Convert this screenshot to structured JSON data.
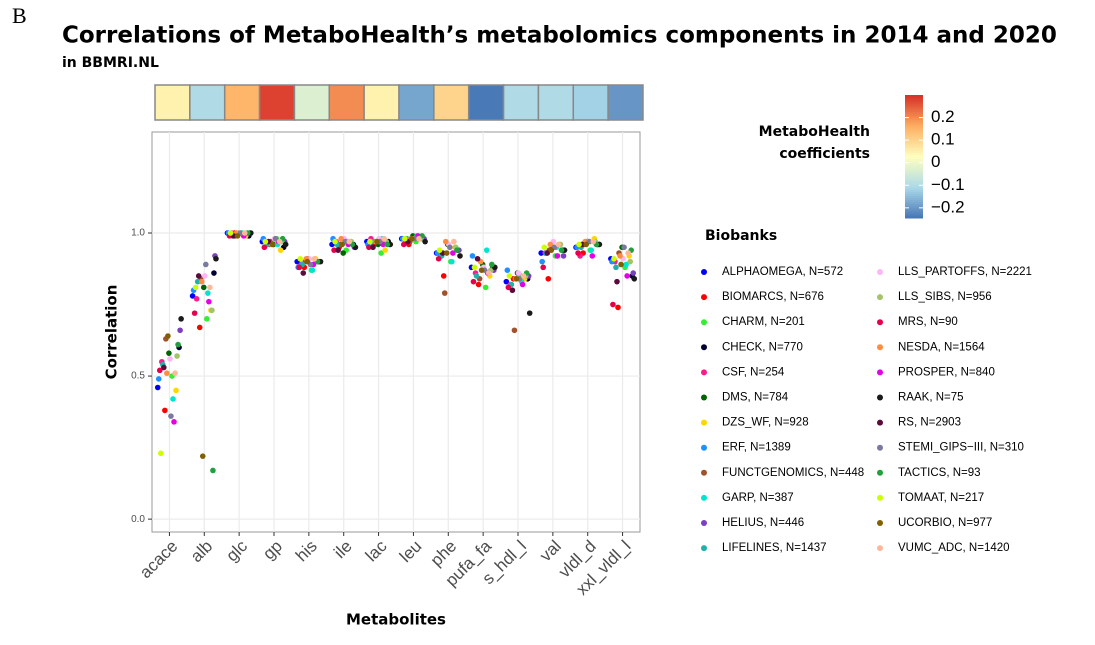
{
  "panel_label": "B",
  "chart_data": {
    "type": "strip",
    "title": "Correlations of MetaboHealth’s metabolomics components in 2014 and 2020",
    "subtitle": "in BBMRI.NL",
    "x_label": "Metabolites",
    "y_label": "Correlation",
    "categories": [
      "acace",
      "alb",
      "glc",
      "gp",
      "his",
      "ile",
      "lac",
      "leu",
      "phe",
      "pufa_fa",
      "s_hdl_l",
      "val",
      "vldl_d",
      "xxl_vldl_l"
    ],
    "ylim": [
      -0.045,
      1.353
    ],
    "yticks": [
      {
        "value": 0,
        "label": "0.0"
      },
      {
        "value": 0.5,
        "label": "0.5"
      },
      {
        "value": 1,
        "label": "1.0"
      }
    ],
    "grid": true,
    "coefficients": [
      0.05,
      -0.1,
      0.15,
      0.28,
      -0.03,
      0.2,
      0.05,
      -0.18,
      0.1,
      -0.24,
      -0.1,
      -0.1,
      -0.12,
      -0.2
    ],
    "colorbar_title": [
      "MetaboHealth",
      "coefficients"
    ],
    "colorbar_lim": [
      -0.245,
      0.3
    ],
    "colorbar_ticks": [
      {
        "value": 0.2,
        "label": "0.2"
      },
      {
        "value": 0.1,
        "label": "0.1"
      },
      0,
      {
        "value": -0.1,
        "label": "−0.1"
      },
      {
        "value": -0.2,
        "label": "−0.2"
      }
    ],
    "colorscale": [
      "#4575b4",
      "#abd9e9",
      "#ffffbf",
      "#fdae61",
      "#d73027"
    ],
    "legend_title": "Biobanks",
    "series": [
      {
        "name": "ALPHAOMEGA, N=572",
        "color": "#0000ff",
        "values": [
          0.46,
          0.78,
          1.0,
          0.97,
          0.9,
          0.96,
          0.97,
          0.98,
          0.93,
          0.88,
          0.83,
          0.93,
          0.95,
          0.91
        ]
      },
      {
        "name": "BIOMARCS, N=676",
        "color": "#ff0000",
        "values": [
          0.38,
          0.67,
          1.0,
          0.96,
          0.88,
          0.95,
          0.96,
          0.96,
          0.85,
          0.82,
          0.84,
          0.84,
          0.93,
          0.74
        ]
      },
      {
        "name": "CHARM, N=201",
        "color": "#33ee33",
        "values": [
          0.5,
          0.7,
          1.0,
          0.98,
          0.87,
          0.94,
          0.93,
          0.97,
          0.9,
          0.81,
          0.85,
          0.92,
          0.94,
          0.88
        ]
      },
      {
        "name": "CHECK, N=770",
        "color": "#000033",
        "values": [
          0.6,
          0.86,
          0.99,
          0.95,
          0.9,
          0.96,
          0.97,
          0.98,
          0.94,
          0.88,
          0.84,
          0.94,
          0.96,
          0.85
        ]
      },
      {
        "name": "CSF, N=254",
        "color": "#ff1a8c",
        "values": [
          0.55,
          0.77,
          1.0,
          0.97,
          0.89,
          0.97,
          0.98,
          0.97,
          0.92,
          0.86,
          0.82,
          0.93,
          0.92,
          0.9
        ]
      },
      {
        "name": "DMS, N=784",
        "color": "#006400",
        "values": [
          0.58,
          0.81,
          1.0,
          0.96,
          0.91,
          0.93,
          0.96,
          0.99,
          0.96,
          0.89,
          0.86,
          0.95,
          0.97,
          0.95
        ]
      },
      {
        "name": "DZS_WF, N=928",
        "color": "#ffd700",
        "values": [
          0.45,
          0.73,
          0.99,
          0.94,
          0.91,
          0.97,
          0.94,
          0.98,
          0.95,
          0.85,
          0.84,
          0.96,
          0.98,
          0.92
        ]
      },
      {
        "name": "ERF, N=1389",
        "color": "#1e90ff",
        "values": [
          0.49,
          0.8,
          1.0,
          0.98,
          0.88,
          0.98,
          0.96,
          0.98,
          0.93,
          0.92,
          0.87,
          0.9,
          0.95,
          0.9
        ]
      },
      {
        "name": "FUNCTGENOMICS, N=448",
        "color": "#a0522d",
        "values": [
          0.63,
          0.84,
          0.99,
          0.97,
          0.9,
          0.96,
          0.97,
          0.97,
          0.79,
          0.84,
          0.66,
          0.94,
          0.96,
          0.93
        ]
      },
      {
        "name": "GARP, N=387",
        "color": "#00e5cc",
        "values": [
          0.42,
          0.79,
          1.0,
          0.96,
          0.87,
          0.97,
          0.98,
          0.99,
          0.9,
          0.94,
          0.83,
          0.95,
          0.94,
          0.89
        ]
      },
      {
        "name": "HELIUS, N=446",
        "color": "#7b3fbf",
        "values": [
          0.66,
          0.92,
          1.0,
          0.97,
          0.9,
          0.95,
          0.96,
          0.98,
          0.94,
          0.87,
          0.85,
          0.92,
          0.96,
          0.86
        ]
      },
      {
        "name": "LIFELINES, N=1437",
        "color": "#20b2aa",
        "values": [
          0.54,
          0.83,
          0.99,
          0.96,
          0.89,
          0.96,
          0.97,
          0.98,
          0.92,
          0.85,
          0.82,
          0.93,
          0.95,
          0.88
        ]
      },
      {
        "name": "LLS_PARTOFFS, N=2221",
        "color": "#ffb6f5",
        "values": [
          0.56,
          0.85,
          1.0,
          0.98,
          0.91,
          0.98,
          0.98,
          0.98,
          0.96,
          0.88,
          0.86,
          0.97,
          0.97,
          0.91
        ]
      },
      {
        "name": "LLS_SIBS, N=956",
        "color": "#a4c46a",
        "values": [
          0.57,
          0.73,
          1.0,
          0.97,
          0.9,
          0.97,
          0.97,
          0.98,
          0.95,
          0.87,
          0.85,
          0.96,
          0.97,
          0.9
        ]
      },
      {
        "name": "MRS, N=90",
        "color": "#e6004c",
        "values": [
          0.52,
          0.72,
          0.99,
          0.95,
          0.88,
          0.94,
          0.95,
          0.96,
          0.91,
          0.83,
          0.81,
          0.88,
          0.93,
          0.75
        ]
      },
      {
        "name": "NESDA, N=1564",
        "color": "#ff8c40",
        "values": [
          0.51,
          0.83,
          1.0,
          0.96,
          0.91,
          0.98,
          0.97,
          0.98,
          0.97,
          0.9,
          0.84,
          0.96,
          0.97,
          0.92
        ]
      },
      {
        "name": "PROSPER, N=840",
        "color": "#e600e6",
        "values": [
          0.34,
          0.76,
          0.99,
          0.97,
          0.89,
          0.96,
          0.96,
          0.99,
          0.93,
          0.86,
          0.82,
          0.92,
          0.92,
          0.85
        ]
      },
      {
        "name": "RAAK, N=75",
        "color": "#1a1a1a",
        "values": [
          0.7,
          0.91,
          1.0,
          0.96,
          0.9,
          0.95,
          0.96,
          0.97,
          0.92,
          0.88,
          0.72,
          0.94,
          0.96,
          0.84
        ]
      },
      {
        "name": "RS, N=2903",
        "color": "#5c0a3c",
        "values": [
          0.53,
          0.85,
          0.99,
          0.97,
          0.86,
          0.94,
          0.95,
          0.97,
          0.93,
          0.91,
          0.8,
          0.93,
          0.96,
          0.83
        ]
      },
      {
        "name": "STEMI_GIPS−III, N=310",
        "color": "#7a7aa0",
        "values": [
          0.36,
          0.89,
          1.0,
          0.98,
          0.89,
          0.97,
          0.97,
          0.98,
          0.95,
          0.87,
          0.84,
          0.95,
          0.97,
          0.95
        ]
      },
      {
        "name": "TACTICS, N=93",
        "color": "#22a03c",
        "values": [
          0.61,
          0.17,
          1.0,
          0.98,
          0.9,
          0.96,
          0.96,
          0.99,
          0.94,
          0.89,
          0.86,
          0.94,
          0.96,
          0.94
        ]
      },
      {
        "name": "TOMAAT, N=217",
        "color": "#ccff00",
        "values": [
          0.23,
          0.81,
          1.0,
          0.97,
          0.91,
          0.97,
          0.97,
          0.98,
          0.94,
          0.88,
          0.85,
          0.95,
          0.96,
          0.91
        ]
      },
      {
        "name": "UCORBIO, N=977",
        "color": "#806000",
        "values": [
          0.64,
          0.22,
          0.99,
          0.96,
          0.9,
          0.96,
          0.97,
          0.98,
          0.93,
          0.87,
          0.84,
          0.94,
          0.96,
          0.89
        ]
      },
      {
        "name": "VUMC_ADC, N=1420",
        "color": "#ffb89a",
        "values": [
          0.51,
          0.81,
          1.0,
          0.97,
          0.91,
          0.97,
          0.98,
          0.98,
          0.97,
          0.86,
          0.85,
          0.96,
          0.97,
          0.93
        ]
      }
    ]
  }
}
